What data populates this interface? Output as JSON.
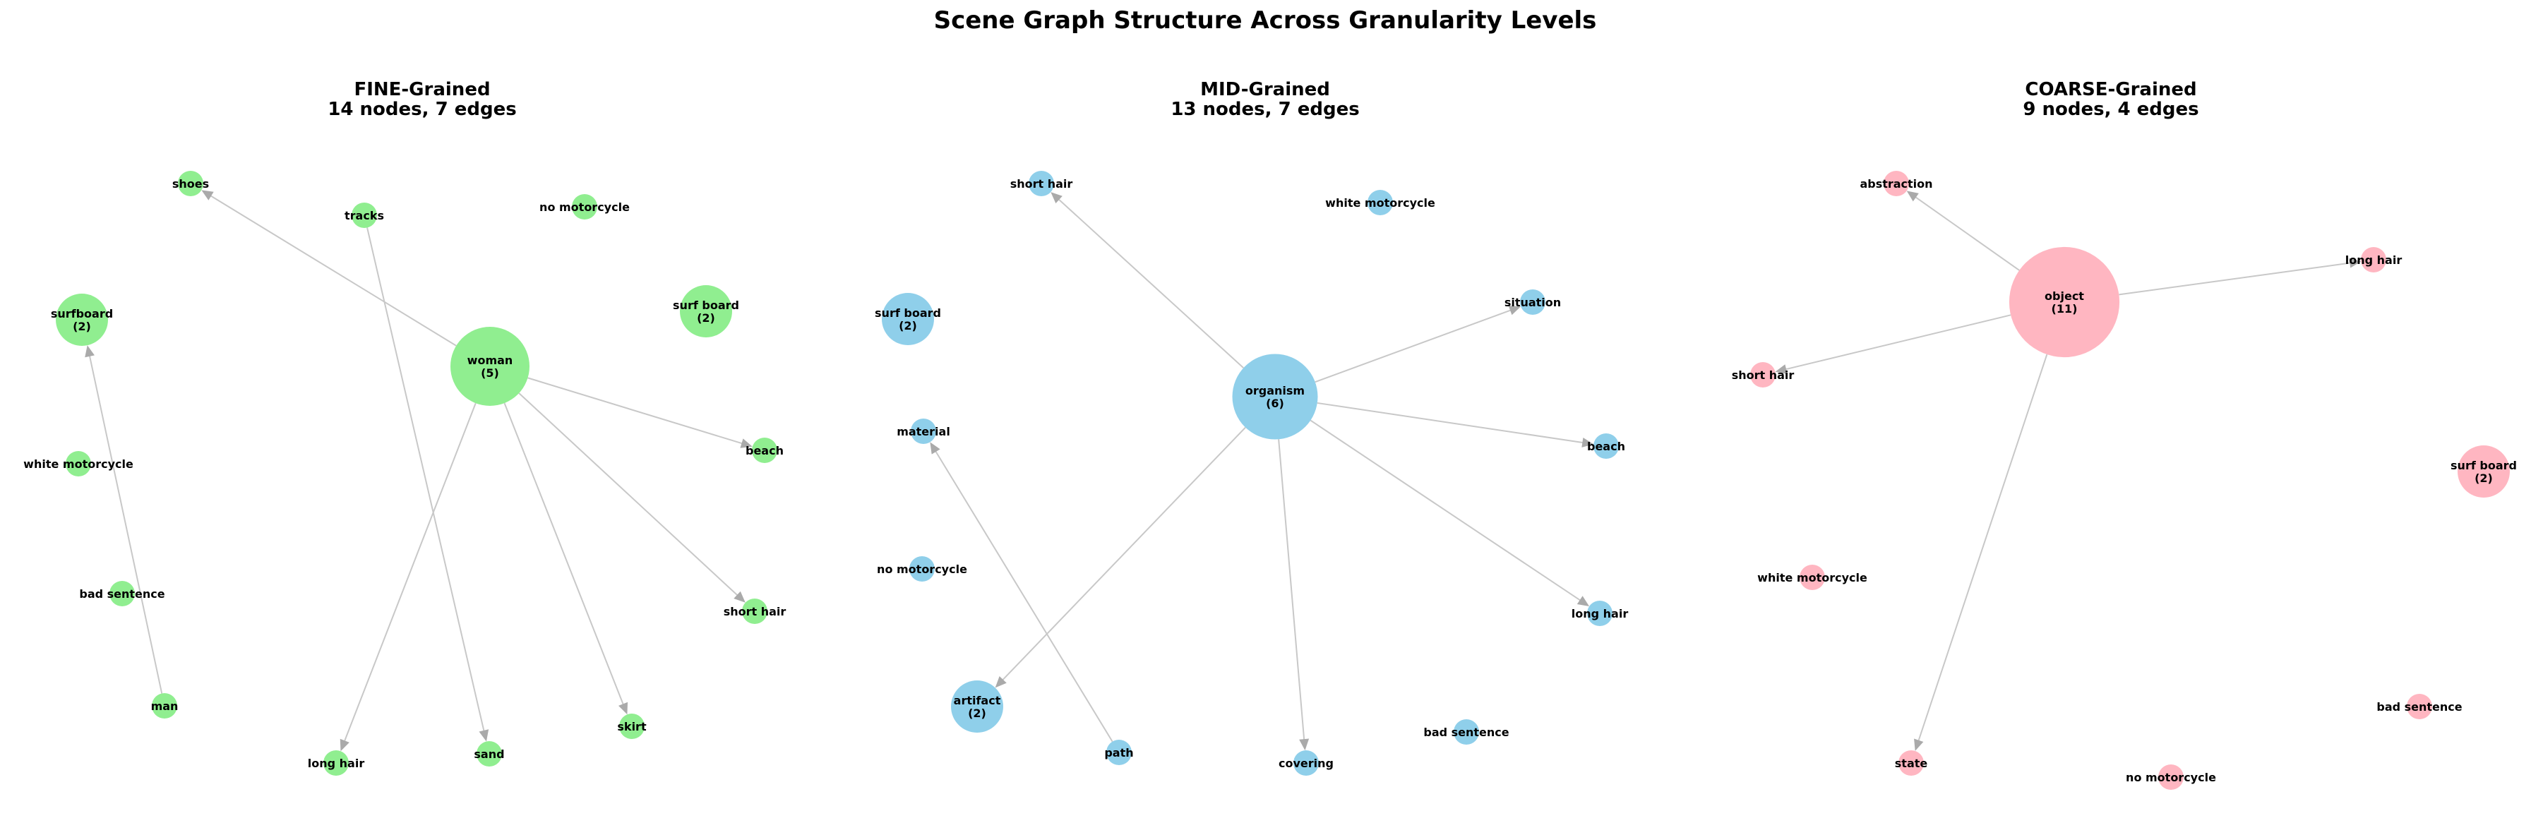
{
  "figure": {
    "title": "Scene Graph Structure Across Granularity Levels"
  },
  "panels": [
    {
      "id": "fine",
      "title": "FINE-Grained",
      "subtitle": "14 nodes, 7 edges",
      "color": "#90ee90",
      "nodes": [
        {
          "id": "shoes",
          "lines": [
            "shoes"
          ],
          "size": 1
        },
        {
          "id": "tracks",
          "lines": [
            "tracks"
          ],
          "size": 1
        },
        {
          "id": "no-motorcycle",
          "lines": [
            "no motorcycle"
          ],
          "size": 1
        },
        {
          "id": "surfboard",
          "lines": [
            "surfboard",
            "(2)"
          ],
          "size": 2
        },
        {
          "id": "surf-board",
          "lines": [
            "surf board",
            "(2)"
          ],
          "size": 2
        },
        {
          "id": "woman",
          "lines": [
            "woman",
            "(5)"
          ],
          "size": 5
        },
        {
          "id": "beach",
          "lines": [
            "beach"
          ],
          "size": 1
        },
        {
          "id": "white-motorcycle",
          "lines": [
            "white motorcycle"
          ],
          "size": 1
        },
        {
          "id": "bad-sentence",
          "lines": [
            "bad sentence"
          ],
          "size": 1
        },
        {
          "id": "short-hair",
          "lines": [
            "short hair"
          ],
          "size": 1
        },
        {
          "id": "man",
          "lines": [
            "man"
          ],
          "size": 1
        },
        {
          "id": "skirt",
          "lines": [
            "skirt"
          ],
          "size": 1
        },
        {
          "id": "long-hair",
          "lines": [
            "long hair"
          ],
          "size": 1
        },
        {
          "id": "sand",
          "lines": [
            "sand"
          ],
          "size": 1
        }
      ],
      "edges": [
        {
          "from": "woman",
          "to": "shoes"
        },
        {
          "from": "woman",
          "to": "beach"
        },
        {
          "from": "woman",
          "to": "short-hair"
        },
        {
          "from": "woman",
          "to": "skirt"
        },
        {
          "from": "woman",
          "to": "long-hair"
        },
        {
          "from": "tracks",
          "to": "sand"
        },
        {
          "from": "man",
          "to": "surfboard"
        }
      ]
    },
    {
      "id": "mid",
      "title": "MID-Grained",
      "subtitle": "13 nodes, 7 edges",
      "color": "#8fcfea",
      "nodes": [
        {
          "id": "short-hair",
          "lines": [
            "short hair"
          ],
          "size": 1
        },
        {
          "id": "white-motorcycle",
          "lines": [
            "white motorcycle"
          ],
          "size": 1
        },
        {
          "id": "surf-board",
          "lines": [
            "surf board",
            "(2)"
          ],
          "size": 2
        },
        {
          "id": "situation",
          "lines": [
            "situation"
          ],
          "size": 1
        },
        {
          "id": "organism",
          "lines": [
            "organism",
            "(6)"
          ],
          "size": 6
        },
        {
          "id": "material",
          "lines": [
            "material"
          ],
          "size": 1
        },
        {
          "id": "beach",
          "lines": [
            "beach"
          ],
          "size": 1
        },
        {
          "id": "no-motorcycle",
          "lines": [
            "no motorcycle"
          ],
          "size": 1
        },
        {
          "id": "long-hair",
          "lines": [
            "long hair"
          ],
          "size": 1
        },
        {
          "id": "artifact",
          "lines": [
            "artifact",
            "(2)"
          ],
          "size": 2
        },
        {
          "id": "bad-sentence",
          "lines": [
            "bad sentence"
          ],
          "size": 1
        },
        {
          "id": "path",
          "lines": [
            "path"
          ],
          "size": 1
        },
        {
          "id": "covering",
          "lines": [
            "covering"
          ],
          "size": 1
        }
      ],
      "edges": [
        {
          "from": "organism",
          "to": "short-hair"
        },
        {
          "from": "organism",
          "to": "situation"
        },
        {
          "from": "organism",
          "to": "beach"
        },
        {
          "from": "organism",
          "to": "long-hair"
        },
        {
          "from": "organism",
          "to": "covering"
        },
        {
          "from": "organism",
          "to": "artifact"
        },
        {
          "from": "path",
          "to": "material"
        }
      ]
    },
    {
      "id": "coarse",
      "title": "COARSE-Grained",
      "subtitle": "9 nodes, 4 edges",
      "color": "#ffb6c1",
      "nodes": [
        {
          "id": "abstraction",
          "lines": [
            "abstraction"
          ],
          "size": 1
        },
        {
          "id": "long-hair",
          "lines": [
            "long hair"
          ],
          "size": 1
        },
        {
          "id": "object",
          "lines": [
            "object",
            "(11)"
          ],
          "size": 11
        },
        {
          "id": "short-hair",
          "lines": [
            "short hair"
          ],
          "size": 1
        },
        {
          "id": "surf-board",
          "lines": [
            "surf board",
            "(2)"
          ],
          "size": 2
        },
        {
          "id": "white-motorcycle",
          "lines": [
            "white motorcycle"
          ],
          "size": 1
        },
        {
          "id": "bad-sentence",
          "lines": [
            "bad sentence"
          ],
          "size": 1
        },
        {
          "id": "state",
          "lines": [
            "state"
          ],
          "size": 1
        },
        {
          "id": "no-motorcycle",
          "lines": [
            "no motorcycle"
          ],
          "size": 1
        }
      ],
      "edges": [
        {
          "from": "object",
          "to": "abstraction"
        },
        {
          "from": "object",
          "to": "long-hair"
        },
        {
          "from": "object",
          "to": "short-hair"
        },
        {
          "from": "object",
          "to": "state"
        }
      ]
    }
  ]
}
